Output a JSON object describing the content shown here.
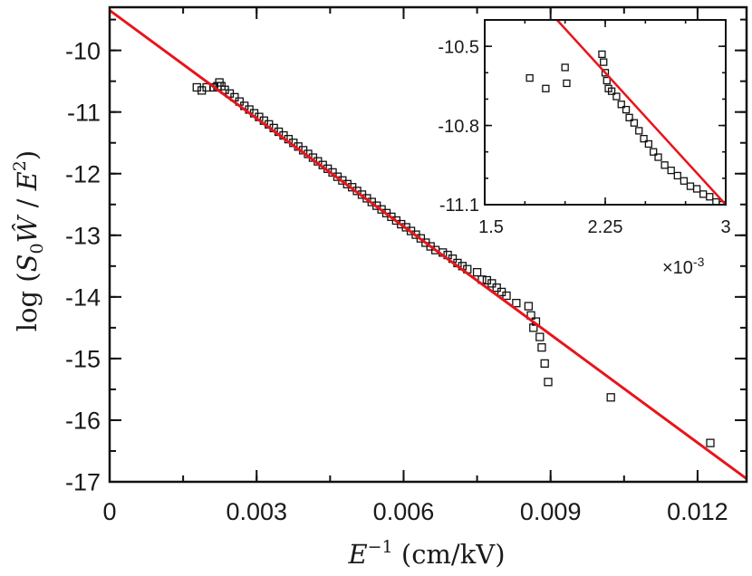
{
  "chart_data": [
    {
      "type": "scatter",
      "role": "main",
      "xlabel_parts": {
        "E": "E",
        "exp": "−1",
        "unit": " (cm/kV)"
      },
      "ylabel_parts": {
        "log": "log",
        "open": " (",
        "S": "S",
        "sub0": "0",
        "W": "Ŵ",
        "slash": " / ",
        "E": "E",
        "sup2": "2",
        "close": ")"
      },
      "xlim": [
        0,
        0.013
      ],
      "ylim": [
        -17,
        -9.3
      ],
      "xticks": [
        0,
        0.003,
        0.006,
        0.009,
        0.012
      ],
      "xtick_labels": [
        "0",
        "0.003",
        "0.006",
        "0.009",
        "0.012"
      ],
      "yticks": [
        -17,
        -16,
        -15,
        -14,
        -13,
        -12,
        -11,
        -10
      ],
      "ytick_labels": [
        "-17",
        "-16",
        "-15",
        "-14",
        "-13",
        "-12",
        "-11",
        "-10"
      ],
      "fit_line": {
        "color": "#e8141a",
        "points": [
          [
            0,
            -9.35
          ],
          [
            0.013,
            -16.95
          ]
        ]
      },
      "marker": "open-square",
      "points": [
        [
          0.00178,
          -10.6
        ],
        [
          0.00188,
          -10.65
        ],
        [
          0.00198,
          -10.6
        ],
        [
          0.00212,
          -10.6
        ],
        [
          0.0022,
          -10.58
        ],
        [
          0.00224,
          -10.52
        ],
        [
          0.00228,
          -10.58
        ],
        [
          0.00235,
          -10.64
        ],
        [
          0.00245,
          -10.7
        ],
        [
          0.00255,
          -10.76
        ],
        [
          0.00265,
          -10.83
        ],
        [
          0.00275,
          -10.9
        ],
        [
          0.00285,
          -10.96
        ],
        [
          0.00295,
          -11.02
        ],
        [
          0.00305,
          -11.08
        ],
        [
          0.00315,
          -11.14
        ],
        [
          0.00325,
          -11.2
        ],
        [
          0.00335,
          -11.26
        ],
        [
          0.00345,
          -11.32
        ],
        [
          0.00355,
          -11.38
        ],
        [
          0.00365,
          -11.44
        ],
        [
          0.00375,
          -11.5
        ],
        [
          0.00385,
          -11.56
        ],
        [
          0.00395,
          -11.62
        ],
        [
          0.00405,
          -11.68
        ],
        [
          0.00415,
          -11.74
        ],
        [
          0.00425,
          -11.8
        ],
        [
          0.00435,
          -11.86
        ],
        [
          0.00445,
          -11.92
        ],
        [
          0.00455,
          -11.98
        ],
        [
          0.00465,
          -12.05
        ],
        [
          0.00475,
          -12.11
        ],
        [
          0.00485,
          -12.17
        ],
        [
          0.00495,
          -12.22
        ],
        [
          0.00505,
          -12.28
        ],
        [
          0.00515,
          -12.34
        ],
        [
          0.00525,
          -12.4
        ],
        [
          0.00535,
          -12.46
        ],
        [
          0.00545,
          -12.52
        ],
        [
          0.00555,
          -12.58
        ],
        [
          0.00565,
          -12.64
        ],
        [
          0.00575,
          -12.7
        ],
        [
          0.00585,
          -12.76
        ],
        [
          0.00595,
          -12.82
        ],
        [
          0.00605,
          -12.87
        ],
        [
          0.00615,
          -12.93
        ],
        [
          0.00625,
          -12.99
        ],
        [
          0.00635,
          -13.05
        ],
        [
          0.00645,
          -13.12
        ],
        [
          0.00655,
          -13.18
        ],
        [
          0.00665,
          -13.24
        ],
        [
          0.0068,
          -13.28
        ],
        [
          0.0069,
          -13.32
        ],
        [
          0.007,
          -13.38
        ],
        [
          0.0071,
          -13.45
        ],
        [
          0.0072,
          -13.5
        ],
        [
          0.0073,
          -13.55
        ],
        [
          0.0075,
          -13.6
        ],
        [
          0.0076,
          -13.72
        ],
        [
          0.0077,
          -13.73
        ],
        [
          0.0078,
          -13.78
        ],
        [
          0.0079,
          -13.85
        ],
        [
          0.008,
          -13.92
        ],
        [
          0.0081,
          -13.98
        ],
        [
          0.0083,
          -14.1
        ],
        [
          0.00855,
          -14.15
        ],
        [
          0.0086,
          -14.3
        ],
        [
          0.00865,
          -14.5
        ],
        [
          0.0087,
          -14.4
        ],
        [
          0.00878,
          -14.65
        ],
        [
          0.00882,
          -14.82
        ],
        [
          0.00888,
          -15.08
        ],
        [
          0.00895,
          -15.38
        ],
        [
          0.01023,
          -15.63
        ],
        [
          0.01226,
          -16.37
        ]
      ]
    },
    {
      "type": "scatter",
      "role": "inset",
      "xlim": [
        1.5,
        3
      ],
      "ylim": [
        -11.1,
        -10.4
      ],
      "xticks": [
        1.5,
        2.25,
        3
      ],
      "xtick_labels": [
        "1.5",
        "2.25",
        "3"
      ],
      "yticks": [
        -10.5,
        -10.8,
        -11.1
      ],
      "ytick_labels": [
        "-10.5",
        "-10.8",
        "-11.1"
      ],
      "x_multiplier": "×10",
      "x_multiplier_exp": "-3",
      "fit_line": {
        "color": "#e8141a",
        "points": [
          [
            1.5,
            -10.1
          ],
          [
            3,
            -11.1
          ]
        ]
      },
      "marker": "open-square",
      "points": [
        [
          1.78,
          -10.62
        ],
        [
          1.88,
          -10.66
        ],
        [
          2.0,
          -10.58
        ],
        [
          2.01,
          -10.64
        ],
        [
          2.23,
          -10.53
        ],
        [
          2.24,
          -10.56
        ],
        [
          2.25,
          -10.6
        ],
        [
          2.26,
          -10.63
        ],
        [
          2.27,
          -10.66
        ],
        [
          2.29,
          -10.67
        ],
        [
          2.32,
          -10.69
        ],
        [
          2.35,
          -10.72
        ],
        [
          2.38,
          -10.74
        ],
        [
          2.4,
          -10.77
        ],
        [
          2.43,
          -10.79
        ],
        [
          2.46,
          -10.82
        ],
        [
          2.49,
          -10.85
        ],
        [
          2.52,
          -10.87
        ],
        [
          2.55,
          -10.9
        ],
        [
          2.58,
          -10.92
        ],
        [
          2.62,
          -10.95
        ],
        [
          2.66,
          -10.97
        ],
        [
          2.7,
          -10.99
        ],
        [
          2.74,
          -11.01
        ],
        [
          2.78,
          -11.03
        ],
        [
          2.82,
          -11.04
        ],
        [
          2.86,
          -11.06
        ],
        [
          2.9,
          -11.07
        ],
        [
          2.94,
          -11.09
        ],
        [
          2.98,
          -11.1
        ]
      ]
    }
  ]
}
